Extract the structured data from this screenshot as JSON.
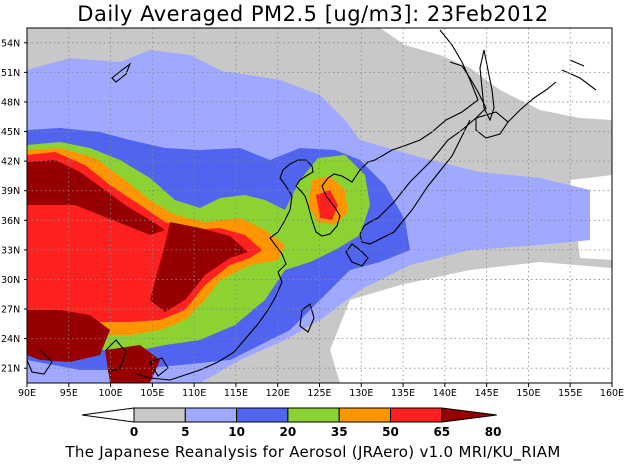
{
  "title": "Daily Averaged PM2.5 [ug/m3]: 23Feb2012",
  "credit": "The Japanese Reanalysis for Aerosol (JRAero) v1.0 MRI/KU_RIAM",
  "map": {
    "lon_labels": [
      "90E",
      "95E",
      "100E",
      "105E",
      "110E",
      "115E",
      "120E",
      "125E",
      "130E",
      "135E",
      "140E",
      "145E",
      "150E",
      "155E",
      "160E"
    ],
    "lat_labels": [
      "21N",
      "24N",
      "27N",
      "30N",
      "33N",
      "36N",
      "39N",
      "42N",
      "45N",
      "48N",
      "51N",
      "54N"
    ]
  },
  "colorbar": {
    "ticks": [
      "0",
      "5",
      "10",
      "20",
      "35",
      "50",
      "65",
      "80"
    ],
    "colors": [
      "#ffffff",
      "#c8c8c8",
      "#a0a8ff",
      "#5064f0",
      "#8cd232",
      "#ff9600",
      "#ff2020",
      "#960000"
    ]
  },
  "palette": {
    "land_line": "#000000",
    "grid": "#888888",
    "c5": "#c8c8c8",
    "c10": "#a0a8ff",
    "c20": "#5064f0",
    "c35": "#8cd232",
    "c50": "#ff9600",
    "c65": "#ff2020",
    "c80": "#960000"
  }
}
